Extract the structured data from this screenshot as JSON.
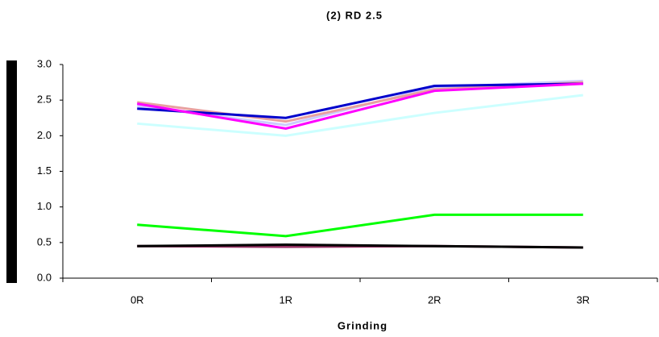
{
  "chart_data": {
    "type": "line",
    "title": "(2) RD 2.5",
    "x_label": "Grinding",
    "categories": [
      "0R",
      "1R",
      "2R",
      "3R"
    ],
    "series": [
      {
        "color": "#ccffff",
        "values": [
          2.17,
          2.0,
          2.32,
          2.57
        ]
      },
      {
        "color": "#ccccff",
        "values": [
          2.42,
          2.15,
          2.68,
          2.77
        ]
      },
      {
        "color": "#e8a0a0",
        "values": [
          2.47,
          2.2,
          2.65,
          2.75
        ]
      },
      {
        "color": "#0000cc",
        "values": [
          2.38,
          2.25,
          2.7,
          2.73
        ]
      },
      {
        "color": "#ff00ff",
        "values": [
          2.45,
          2.1,
          2.63,
          2.73
        ]
      },
      {
        "color": "#00ff00",
        "values": [
          0.75,
          0.59,
          0.89,
          0.89
        ]
      },
      {
        "color": "#993366",
        "values": [
          0.45,
          0.44,
          0.45,
          0.43
        ]
      },
      {
        "color": "#000000",
        "values": [
          0.45,
          0.47,
          0.45,
          0.43
        ]
      }
    ],
    "ylim": [
      0,
      3
    ],
    "yticks": [
      {
        "value": 0,
        "label": "0.0"
      },
      0.5,
      {
        "value": 1,
        "label": "1.0"
      },
      1.5,
      {
        "value": 2,
        "label": "2.0"
      },
      2.5,
      {
        "value": 3,
        "label": "3.0"
      }
    ],
    "grid": false
  }
}
